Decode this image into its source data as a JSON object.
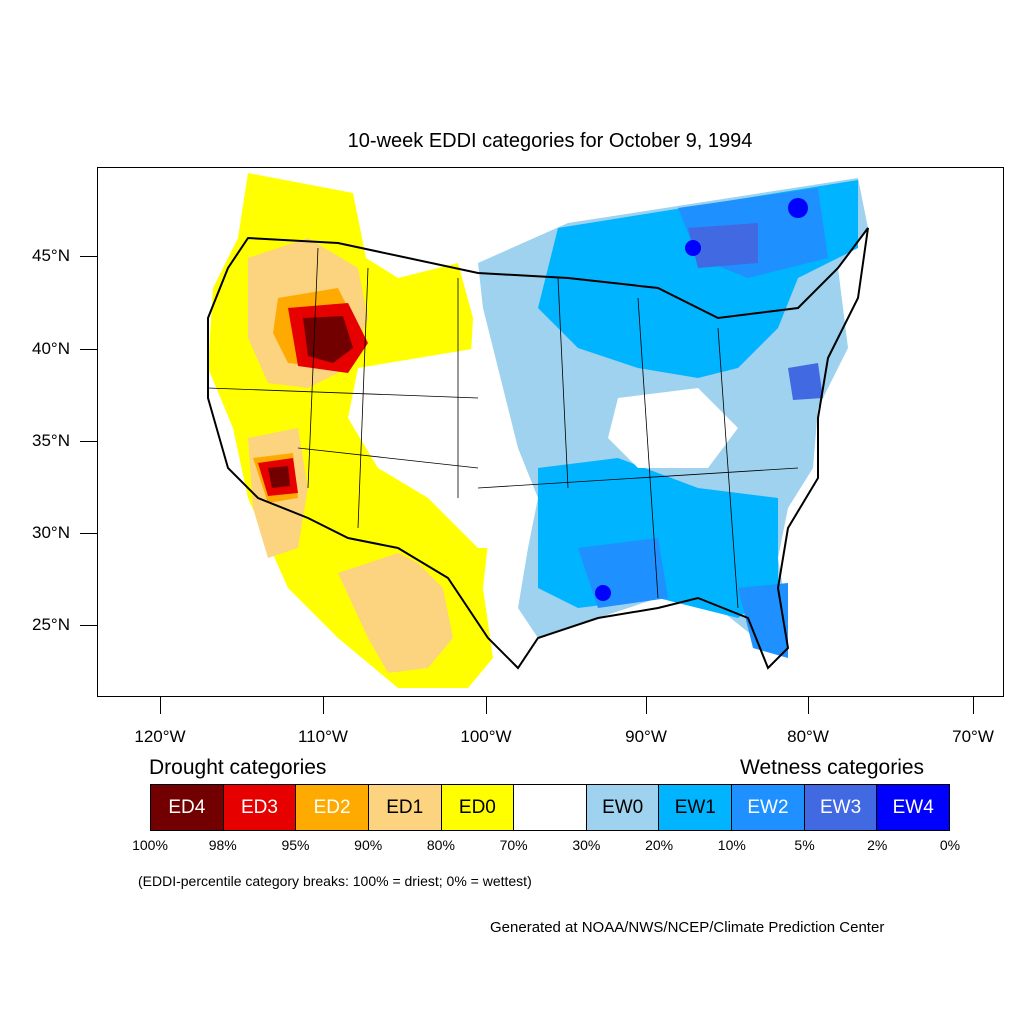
{
  "title": "10-week EDDI categories for October 9, 1994",
  "lat_labels": [
    "45°N",
    "40°N",
    "35°N",
    "30°N",
    "25°N"
  ],
  "lon_labels": [
    "120°W",
    "110°W",
    "100°W",
    "90°W",
    "80°W",
    "70°W"
  ],
  "legend": {
    "drought_title": "Drought categories",
    "wetness_title": "Wetness categories",
    "categories": [
      {
        "label": "ED4",
        "color": "#730000",
        "text_color": "#ffffff"
      },
      {
        "label": "ED3",
        "color": "#e60000",
        "text_color": "#ffffff"
      },
      {
        "label": "ED2",
        "color": "#ffaa00",
        "text_color": "#ffffff"
      },
      {
        "label": "ED1",
        "color": "#fcd37f",
        "text_color": "#000000"
      },
      {
        "label": "ED0",
        "color": "#ffff00",
        "text_color": "#000000"
      },
      {
        "label": "",
        "color": "#ffffff",
        "text_color": "#000000"
      },
      {
        "label": "EW0",
        "color": "#9ed2ef",
        "text_color": "#000000"
      },
      {
        "label": "EW1",
        "color": "#00b4ff",
        "text_color": "#000000"
      },
      {
        "label": "EW2",
        "color": "#1e90ff",
        "text_color": "#ffffff"
      },
      {
        "label": "EW3",
        "color": "#4169e1",
        "text_color": "#ffffff"
      },
      {
        "label": "EW4",
        "color": "#0000ff",
        "text_color": "#ffffff"
      }
    ],
    "breaks": [
      "100%",
      "98%",
      "95%",
      "90%",
      "80%",
      "70%",
      "30%",
      "20%",
      "10%",
      "5%",
      "2%",
      "0%"
    ]
  },
  "note": "(EDDI-percentile category breaks: 100% = driest; 0% = wettest)",
  "credit": "Generated at NOAA/NWS/NCEP/Climate Prediction Center"
}
